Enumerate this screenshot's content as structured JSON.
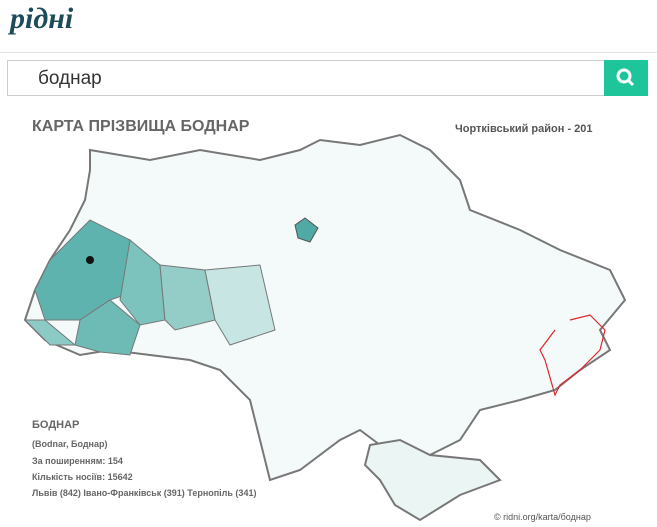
{
  "header": {
    "logo": "рідні"
  },
  "search": {
    "query": "боднар"
  },
  "map": {
    "title": "КАРТА ПРІЗВИЩА БОДНАР",
    "hover_label": "Чортківський район - 201"
  },
  "info": {
    "name": "БОДНАР",
    "variants": "(Bodnar, Боднар)",
    "rank": "За поширенням: 154",
    "count": "Кількість носіїв:  15642",
    "top_regions": "Львів (842) Івано-Франківськ (391) Тернопіль (341)"
  },
  "footer": {
    "credit": "© ridni.org/karta/боднар"
  }
}
